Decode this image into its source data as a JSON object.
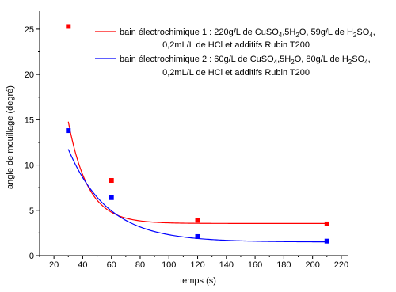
{
  "chart_data": {
    "type": "scatter",
    "xlabel": "temps (s)",
    "ylabel": "angle de mouillage (degré)",
    "xlim": [
      10,
      225
    ],
    "ylim": [
      0,
      27
    ],
    "xticks": [
      20,
      40,
      60,
      80,
      100,
      120,
      140,
      160,
      180,
      200,
      220
    ],
    "yticks": [
      0,
      5,
      10,
      15,
      20,
      25
    ],
    "grid": false,
    "legend_position": "top-right",
    "series": [
      {
        "name": "bain électrochimique 1 : 220g/L de CuSO4,5H2O, 59g/L de H2SO4, 0,2mL/L de HCl et additifs Rubin T200",
        "legend_line1": "bain électrochimique 1 : 220g/L de CuSO",
        "legend_line1_parts": [
          {
            "t": "bain électrochimique 1 : 220g/L de CuSO",
            "sub": false
          },
          {
            "t": "4",
            "sub": true
          },
          {
            "t": ",5H",
            "sub": false
          },
          {
            "t": "2",
            "sub": true
          },
          {
            "t": "O, 59g/L de H",
            "sub": false
          },
          {
            "t": "2",
            "sub": true
          },
          {
            "t": "SO",
            "sub": false
          },
          {
            "t": "4",
            "sub": true
          },
          {
            "t": ",",
            "sub": false
          }
        ],
        "legend_line2": "0,2mL/L de HCl et additifs Rubin T200",
        "color": "#ff0000",
        "x": [
          30,
          60,
          120,
          210
        ],
        "y": [
          25.3,
          8.3,
          3.9,
          3.5
        ],
        "fit": {
          "model": "exponential",
          "y0": 3.55,
          "A": 102,
          "t": 13.6
        }
      },
      {
        "name": "bain électrochimique 2 : 60g/L de CuSO4,5H2O, 80g/L de H2SO4, 0,2mL/L de HCl et additifs Rubin T200",
        "legend_line2": "0,2mL/L de HCl et additifs Rubin T200",
        "legend_line1_parts": [
          {
            "t": "bain électrochimique 2 : 60g/L de CuSO",
            "sub": false
          },
          {
            "t": "4",
            "sub": true
          },
          {
            "t": ",5H",
            "sub": false
          },
          {
            "t": "2",
            "sub": true
          },
          {
            "t": "O, 80g/L de H",
            "sub": false
          },
          {
            "t": "2",
            "sub": true
          },
          {
            "t": "SO",
            "sub": false
          },
          {
            "t": "4",
            "sub": true
          },
          {
            "t": ",",
            "sub": false
          }
        ],
        "color": "#0000ff",
        "x": [
          30,
          60,
          120,
          210
        ],
        "y": [
          13.8,
          6.4,
          2.1,
          1.6
        ],
        "fit": {
          "model": "exponential",
          "y0": 1.5,
          "A": 30.5,
          "t": 27.5
        }
      }
    ]
  }
}
